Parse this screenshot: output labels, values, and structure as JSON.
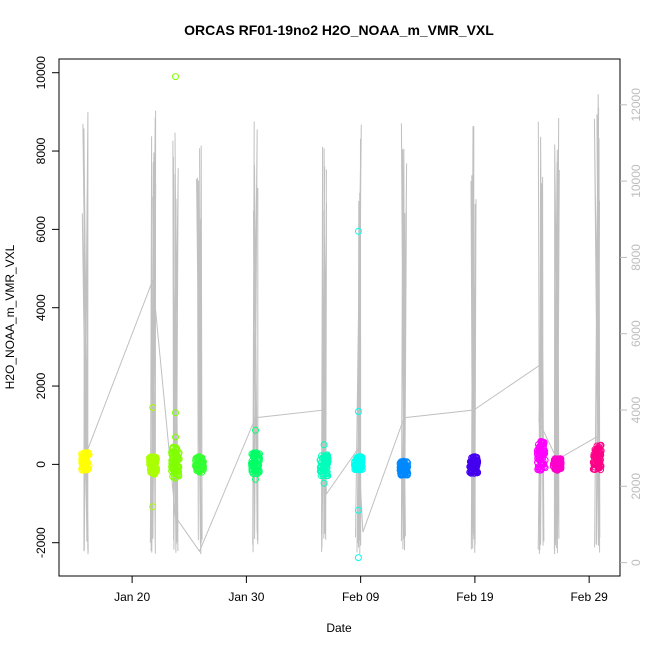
{
  "chart_data": {
    "type": "scatter",
    "title": "ORCAS RF01-19no2 H2O_NOAA_m_VMR_VXL",
    "xlabel": "Date",
    "ylabel": "H2O_NOAA_m_VMR_VXL",
    "x_ticks": [
      "Jan 20",
      "Jan 30",
      "Feb 09",
      "Feb 19",
      "Feb 29"
    ],
    "x_tick_days": [
      20,
      30,
      40,
      50,
      60
    ],
    "xlim_days": [
      13.6,
      62.7
    ],
    "y_ticks": [
      -2000,
      0,
      2000,
      4000,
      6000,
      8000,
      10000
    ],
    "ylim": [
      -2850,
      10350
    ],
    "y2_ticks": [
      0,
      2000,
      4000,
      6000,
      8000,
      10000,
      12000
    ],
    "y2_ylim": [
      -350,
      13200
    ],
    "y2_color": "#bdbdbd",
    "grid": false,
    "flights": [
      {
        "day": 15.9,
        "color": "#ffff00",
        "vmin": -150,
        "vmax": 300,
        "outliers": [],
        "alt_max": 12000
      },
      {
        "day": 21.8,
        "color": "#aaff00",
        "vmin": -250,
        "vmax": 200,
        "outliers": [
          1450,
          -1080
        ],
        "alt_max": 12000
      },
      {
        "day": 23.8,
        "color": "#80ff00",
        "vmin": -350,
        "vmax": 450,
        "outliers": [
          9900,
          1320,
          700
        ],
        "alt_max": 12400
      },
      {
        "day": 25.9,
        "color": "#33ff33",
        "vmin": -200,
        "vmax": 200,
        "outliers": [],
        "alt_max": 11700
      },
      {
        "day": 30.8,
        "color": "#00ff66",
        "vmin": -250,
        "vmax": 300,
        "outliers": [
          870,
          -380
        ],
        "alt_max": 12200
      },
      {
        "day": 36.8,
        "color": "#00ffbb",
        "vmin": -300,
        "vmax": 250,
        "outliers": [
          500,
          -480
        ],
        "alt_max": 11700
      },
      {
        "day": 39.8,
        "color": "#00ffee",
        "vmin": -150,
        "vmax": 200,
        "outliers": [
          5950,
          1350,
          -1170,
          -2380
        ],
        "alt_max": 11700
      },
      {
        "day": 43.8,
        "color": "#0088ff",
        "vmin": -280,
        "vmax": 80,
        "outliers": [],
        "alt_max": 11600
      },
      {
        "day": 49.9,
        "color": "#4400ee",
        "vmin": -230,
        "vmax": 200,
        "outliers": [],
        "alt_max": 11900
      },
      {
        "day": 55.8,
        "color": "#ff00ff",
        "vmin": -150,
        "vmax": 600,
        "outliers": [],
        "alt_max": 11700
      },
      {
        "day": 57.2,
        "color": "#ff00cc",
        "vmin": -150,
        "vmax": 150,
        "outliers": [],
        "alt_max": 11700
      },
      {
        "day": 60.7,
        "color": "#ff0088",
        "vmin": -150,
        "vmax": 500,
        "outliers": [],
        "alt_max": 12500
      }
    ],
    "altitude_line": [
      [
        15.9,
        2800
      ],
      [
        21.8,
        7400
      ],
      [
        23.8,
        1200
      ],
      [
        25.9,
        300
      ],
      [
        30.8,
        3800
      ],
      [
        36.8,
        4000
      ],
      [
        37.0,
        1800
      ],
      [
        39.8,
        3000
      ],
      [
        40.2,
        800
      ],
      [
        43.8,
        3800
      ],
      [
        49.9,
        4000
      ],
      [
        55.8,
        5200
      ],
      [
        55.6,
        3700
      ],
      [
        57.2,
        2700
      ],
      [
        60.7,
        3300
      ]
    ]
  }
}
